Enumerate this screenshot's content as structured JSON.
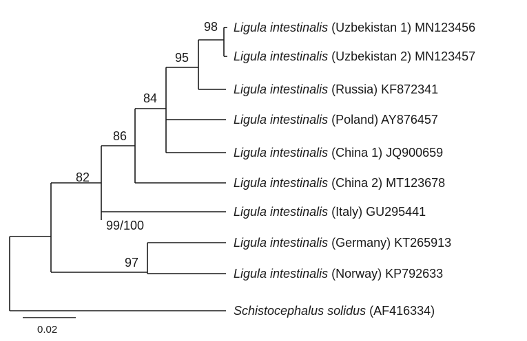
{
  "taxa": [
    {
      "id": "uzb1",
      "genus_species": "Ligula intestinalis",
      "suffix": " (Uzbekistan 1) MN123456"
    },
    {
      "id": "uzb2",
      "genus_species": "Ligula intestinalis",
      "suffix": " (Uzbekistan 2) MN123457"
    },
    {
      "id": "rus",
      "genus_species": "Ligula intestinalis",
      "suffix": " (Russia) KF872341"
    },
    {
      "id": "pol",
      "genus_species": "Ligula intestinalis",
      "suffix": " (Poland) AY876457"
    },
    {
      "id": "chn1",
      "genus_species": "Ligula intestinalis",
      "suffix": " (China 1) JQ900659"
    },
    {
      "id": "chn2",
      "genus_species": "Ligula intestinalis",
      "suffix": " (China 2) MT123678"
    },
    {
      "id": "ita",
      "genus_species": "Ligula intestinalis",
      "suffix": " (Italy) GU295441"
    },
    {
      "id": "ger",
      "genus_species": "Ligula intestinalis",
      "suffix": " (Germany) KT265913"
    },
    {
      "id": "nor",
      "genus_species": "Ligula intestinalis",
      "suffix": " (Norway) KP792633"
    },
    {
      "id": "schisto",
      "genus_species": "Schistocephalus solidus",
      "suffix": " (AF416334)"
    }
  ],
  "support_values": [
    {
      "node": "uzb-clade",
      "value": "98"
    },
    {
      "node": "uzb-rus-clade",
      "value": "95"
    },
    {
      "node": "pol-chn1-clade",
      "value": "84"
    },
    {
      "node": "chn2-clade",
      "value": "86"
    },
    {
      "node": "ligula-ingroup",
      "value": "82"
    },
    {
      "node": "italy-clade",
      "value": "99/100"
    },
    {
      "node": "ger-nor-clade",
      "value": "97"
    }
  ],
  "scale_bar": {
    "label": "0.02"
  }
}
